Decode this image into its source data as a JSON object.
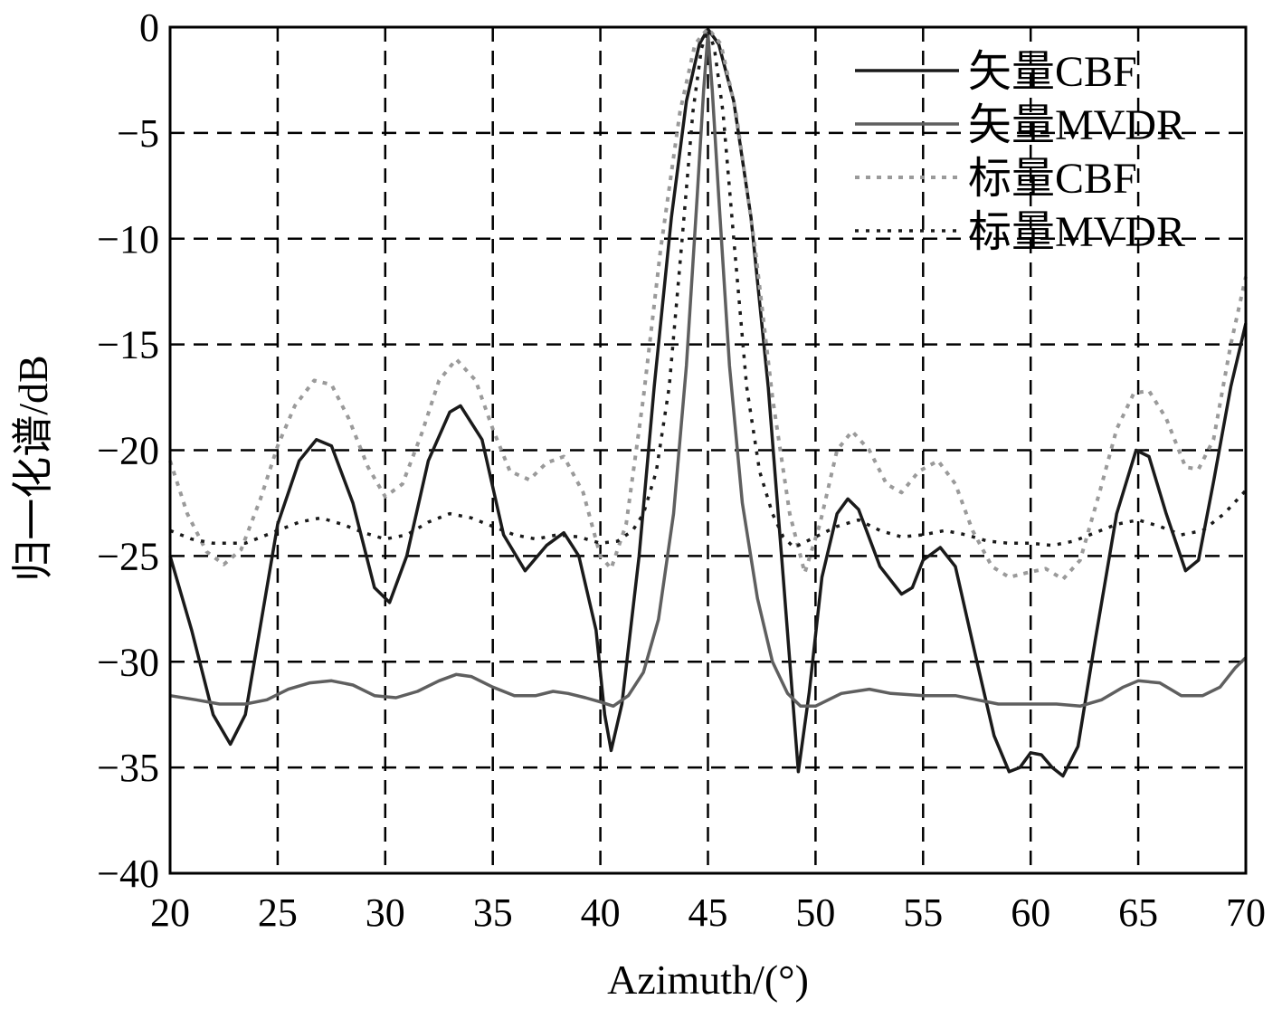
{
  "chart_data": {
    "type": "line",
    "xlabel": "Azimuth/(°)",
    "ylabel": "归一化谱/dB",
    "xlim": [
      20,
      70
    ],
    "ylim": [
      -40,
      0
    ],
    "xticks": [
      20,
      25,
      30,
      35,
      40,
      45,
      50,
      55,
      60,
      65,
      70
    ],
    "yticks": [
      0,
      -5,
      -10,
      -15,
      -20,
      -25,
      -30,
      -35,
      -40
    ],
    "xtick_labels": [
      "20",
      "25",
      "30",
      "35",
      "40",
      "45",
      "50",
      "55",
      "60",
      "65",
      "70"
    ],
    "ytick_labels": [
      "0",
      "−5",
      "−10",
      "−15",
      "−20",
      "−25",
      "−30",
      "−35",
      "−40"
    ],
    "grid": true,
    "legend_position": "top-right",
    "series": [
      {
        "name": "矢量CBF",
        "style": "solid",
        "color": "#1a1a1a",
        "points": [
          [
            20,
            -25
          ],
          [
            21,
            -28.5
          ],
          [
            22,
            -32.5
          ],
          [
            22.8,
            -33.9
          ],
          [
            23.5,
            -32.5
          ],
          [
            24,
            -29.5
          ],
          [
            25,
            -23.5
          ],
          [
            26,
            -20.5
          ],
          [
            26.8,
            -19.5
          ],
          [
            27.5,
            -19.8
          ],
          [
            28.5,
            -22.5
          ],
          [
            29.5,
            -26.5
          ],
          [
            30.2,
            -27.2
          ],
          [
            31,
            -25
          ],
          [
            32,
            -20.5
          ],
          [
            33,
            -18.2
          ],
          [
            33.5,
            -17.9
          ],
          [
            34.5,
            -19.5
          ],
          [
            35.5,
            -24
          ],
          [
            36.5,
            -25.7
          ],
          [
            37.5,
            -24.5
          ],
          [
            38.3,
            -23.9
          ],
          [
            39,
            -25
          ],
          [
            39.8,
            -28.5
          ],
          [
            40.2,
            -32.5
          ],
          [
            40.5,
            -34.2
          ],
          [
            41,
            -32
          ],
          [
            41.8,
            -25
          ],
          [
            42.5,
            -17
          ],
          [
            43.3,
            -9
          ],
          [
            44,
            -3.5
          ],
          [
            44.6,
            -0.8
          ],
          [
            45,
            -0.1
          ],
          [
            45.5,
            -0.8
          ],
          [
            46.2,
            -3.5
          ],
          [
            47,
            -9
          ],
          [
            47.8,
            -17
          ],
          [
            48.5,
            -26
          ],
          [
            49.2,
            -35.2
          ],
          [
            49.7,
            -31.5
          ],
          [
            50.3,
            -26
          ],
          [
            51,
            -23
          ],
          [
            51.5,
            -22.3
          ],
          [
            52,
            -22.8
          ],
          [
            53,
            -25.5
          ],
          [
            54,
            -26.8
          ],
          [
            54.5,
            -26.5
          ],
          [
            55,
            -25.2
          ],
          [
            55.8,
            -24.6
          ],
          [
            56.5,
            -25.5
          ],
          [
            57.5,
            -30
          ],
          [
            58.3,
            -33.5
          ],
          [
            59,
            -35.2
          ],
          [
            59.5,
            -35
          ],
          [
            60,
            -34.3
          ],
          [
            60.5,
            -34.4
          ],
          [
            61,
            -35
          ],
          [
            61.5,
            -35.4
          ],
          [
            62.2,
            -34
          ],
          [
            63,
            -29
          ],
          [
            64,
            -23
          ],
          [
            64.9,
            -20
          ],
          [
            65.5,
            -20.3
          ],
          [
            66.3,
            -23
          ],
          [
            67.2,
            -25.7
          ],
          [
            67.8,
            -25.2
          ],
          [
            68.5,
            -21.5
          ],
          [
            69.3,
            -17
          ],
          [
            70,
            -14
          ]
        ]
      },
      {
        "name": "矢量MVDR",
        "style": "solid",
        "color": "#5f5f5f",
        "points": [
          [
            20,
            -31.6
          ],
          [
            21.2,
            -31.8
          ],
          [
            22.3,
            -32
          ],
          [
            23.5,
            -32
          ],
          [
            24.5,
            -31.8
          ],
          [
            25.5,
            -31.3
          ],
          [
            26.5,
            -31
          ],
          [
            27.5,
            -30.9
          ],
          [
            28.5,
            -31.1
          ],
          [
            29.5,
            -31.6
          ],
          [
            30.5,
            -31.7
          ],
          [
            31.5,
            -31.4
          ],
          [
            32.5,
            -30.9
          ],
          [
            33.3,
            -30.6
          ],
          [
            34,
            -30.7
          ],
          [
            35,
            -31.2
          ],
          [
            36,
            -31.6
          ],
          [
            37,
            -31.6
          ],
          [
            37.8,
            -31.4
          ],
          [
            38.5,
            -31.5
          ],
          [
            39.3,
            -31.7
          ],
          [
            40,
            -31.9
          ],
          [
            40.6,
            -32.1
          ],
          [
            41.3,
            -31.6
          ],
          [
            42,
            -30.5
          ],
          [
            42.7,
            -28
          ],
          [
            43.4,
            -23
          ],
          [
            44,
            -16
          ],
          [
            44.5,
            -8
          ],
          [
            44.8,
            -3
          ],
          [
            45,
            -0.3
          ],
          [
            45.2,
            -3
          ],
          [
            45.5,
            -8
          ],
          [
            46,
            -16
          ],
          [
            46.6,
            -22.5
          ],
          [
            47.3,
            -27
          ],
          [
            48,
            -30
          ],
          [
            48.7,
            -31.5
          ],
          [
            49.3,
            -32.1
          ],
          [
            50,
            -32.1
          ],
          [
            51.2,
            -31.5
          ],
          [
            52.5,
            -31.3
          ],
          [
            53.5,
            -31.5
          ],
          [
            55,
            -31.6
          ],
          [
            56.5,
            -31.6
          ],
          [
            57.5,
            -31.8
          ],
          [
            58.5,
            -32
          ],
          [
            60,
            -32
          ],
          [
            61.2,
            -32
          ],
          [
            62.3,
            -32.1
          ],
          [
            63.3,
            -31.8
          ],
          [
            64.3,
            -31.2
          ],
          [
            65,
            -30.9
          ],
          [
            66,
            -31
          ],
          [
            67,
            -31.6
          ],
          [
            68,
            -31.6
          ],
          [
            68.8,
            -31.2
          ],
          [
            69.5,
            -30.3
          ],
          [
            70,
            -29.8
          ]
        ]
      },
      {
        "name": "标量CBF",
        "style": "dotted-gray",
        "color": "#9a9a9a",
        "points": [
          [
            20,
            -20.5
          ],
          [
            20.8,
            -23
          ],
          [
            21.7,
            -24.8
          ],
          [
            22.5,
            -25.4
          ],
          [
            23.3,
            -24.7
          ],
          [
            24.2,
            -22.3
          ],
          [
            25,
            -19.8
          ],
          [
            25.8,
            -17.9
          ],
          [
            26.7,
            -16.7
          ],
          [
            27.5,
            -16.9
          ],
          [
            28.3,
            -18.5
          ],
          [
            29.2,
            -20.8
          ],
          [
            30,
            -22.2
          ],
          [
            30.8,
            -21.6
          ],
          [
            31.7,
            -19.2
          ],
          [
            32.5,
            -16.7
          ],
          [
            33.3,
            -15.7
          ],
          [
            34.2,
            -16.7
          ],
          [
            35,
            -19
          ],
          [
            35.8,
            -21
          ],
          [
            36.7,
            -21.4
          ],
          [
            37.5,
            -20.6
          ],
          [
            38.3,
            -20.3
          ],
          [
            39.2,
            -22
          ],
          [
            40,
            -25
          ],
          [
            40.5,
            -25.6
          ],
          [
            41.2,
            -23.5
          ],
          [
            42,
            -17.5
          ],
          [
            42.8,
            -10.5
          ],
          [
            43.7,
            -4
          ],
          [
            44.4,
            -0.8
          ],
          [
            45,
            -0.05
          ],
          [
            45.6,
            -0.8
          ],
          [
            46.3,
            -4
          ],
          [
            47.2,
            -10.5
          ],
          [
            48,
            -17.5
          ],
          [
            48.8,
            -23
          ],
          [
            49.5,
            -25.8
          ],
          [
            50.2,
            -23.5
          ],
          [
            51,
            -20
          ],
          [
            51.7,
            -19.1
          ],
          [
            52.5,
            -20
          ],
          [
            53.3,
            -21.6
          ],
          [
            54,
            -22
          ],
          [
            54.8,
            -21
          ],
          [
            55.7,
            -20.5
          ],
          [
            56.5,
            -21.6
          ],
          [
            57.3,
            -23.8
          ],
          [
            58.2,
            -25.5
          ],
          [
            59,
            -26
          ],
          [
            59.8,
            -25.8
          ],
          [
            60.7,
            -25.6
          ],
          [
            61.5,
            -26.1
          ],
          [
            62.3,
            -25.2
          ],
          [
            63.2,
            -22
          ],
          [
            64,
            -19
          ],
          [
            64.8,
            -17.3
          ],
          [
            65.5,
            -17.2
          ],
          [
            66.3,
            -18.5
          ],
          [
            67.2,
            -20.8
          ],
          [
            67.8,
            -20.9
          ],
          [
            68.5,
            -19.5
          ],
          [
            69.3,
            -15
          ],
          [
            70,
            -11.8
          ]
        ]
      },
      {
        "name": "标量MVDR",
        "style": "dotted-black",
        "color": "#1a1a1a",
        "points": [
          [
            20,
            -23.8
          ],
          [
            21,
            -24.2
          ],
          [
            22,
            -24.4
          ],
          [
            23.5,
            -24.4
          ],
          [
            25,
            -23.8
          ],
          [
            26,
            -23.4
          ],
          [
            27,
            -23.2
          ],
          [
            28,
            -23.5
          ],
          [
            29,
            -23.9
          ],
          [
            30,
            -24.2
          ],
          [
            31,
            -24
          ],
          [
            32,
            -23.4
          ],
          [
            33,
            -23
          ],
          [
            34,
            -23.2
          ],
          [
            35,
            -23.6
          ],
          [
            36,
            -24
          ],
          [
            37,
            -24.2
          ],
          [
            38,
            -24
          ],
          [
            39,
            -24.1
          ],
          [
            40,
            -24.4
          ],
          [
            40.8,
            -24.3
          ],
          [
            41.5,
            -23.8
          ],
          [
            42,
            -23
          ],
          [
            42.6,
            -21
          ],
          [
            43.2,
            -17
          ],
          [
            43.8,
            -10
          ],
          [
            44.3,
            -4
          ],
          [
            44.7,
            -1
          ],
          [
            45,
            -0.1
          ],
          [
            45.3,
            -1
          ],
          [
            45.7,
            -4
          ],
          [
            46.2,
            -10
          ],
          [
            46.8,
            -17
          ],
          [
            47.4,
            -21
          ],
          [
            48,
            -23
          ],
          [
            48.5,
            -24.1
          ],
          [
            49,
            -24.6
          ],
          [
            50,
            -24.1
          ],
          [
            51,
            -23.6
          ],
          [
            52,
            -23.3
          ],
          [
            53,
            -23.8
          ],
          [
            54,
            -24.1
          ],
          [
            55,
            -24
          ],
          [
            56,
            -23.8
          ],
          [
            57,
            -24
          ],
          [
            58,
            -24.3
          ],
          [
            59,
            -24.4
          ],
          [
            60,
            -24.4
          ],
          [
            61,
            -24.5
          ],
          [
            62,
            -24.3
          ],
          [
            63,
            -23.9
          ],
          [
            64,
            -23.5
          ],
          [
            65,
            -23.3
          ],
          [
            66,
            -23.6
          ],
          [
            67,
            -24
          ],
          [
            68,
            -23.8
          ],
          [
            69,
            -23
          ],
          [
            70,
            -21.9
          ]
        ]
      }
    ]
  }
}
